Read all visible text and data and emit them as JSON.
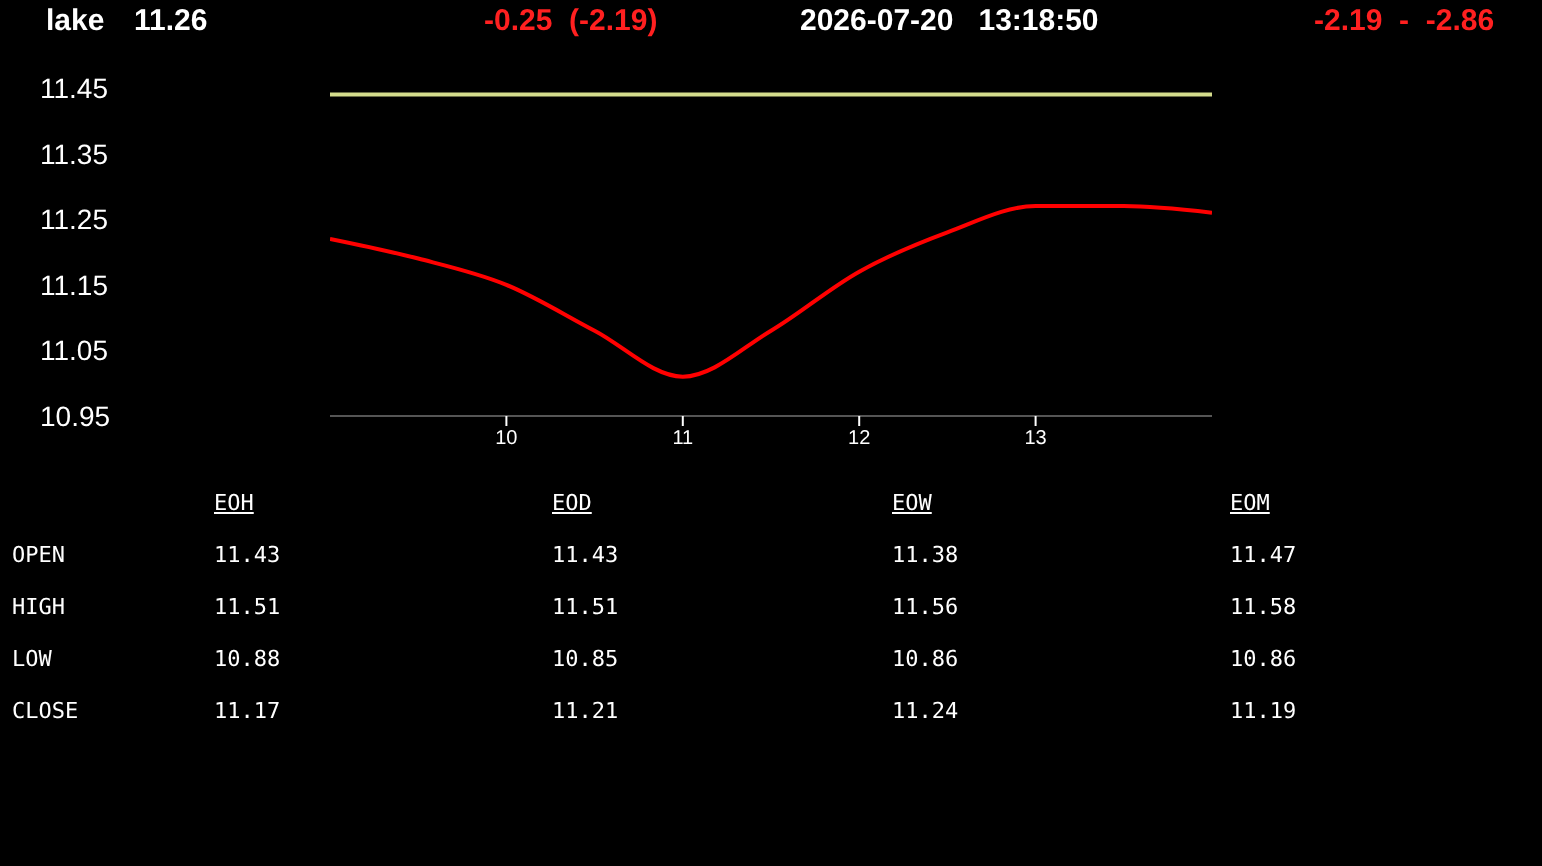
{
  "chart_data": {
    "type": "line",
    "title": "lake",
    "x": [
      9,
      9.5,
      10,
      10.5,
      11,
      11.5,
      12,
      12.5,
      13,
      13.5,
      14
    ],
    "series": [
      {
        "color": "#d4dc8c",
        "values": [
          11.44,
          11.44,
          11.44,
          11.44,
          11.44,
          11.44,
          11.44,
          11.44,
          11.44,
          11.44,
          11.44
        ]
      },
      {
        "color": "#ff0000",
        "values": [
          11.22,
          11.19,
          11.15,
          11.08,
          11.01,
          11.08,
          11.17,
          11.23,
          11.27,
          11.27,
          11.26
        ]
      }
    ],
    "xlim": [
      9,
      14
    ],
    "xticks": [
      10,
      11,
      12,
      13
    ],
    "ylim": [
      10.95,
      11.45
    ],
    "yticks": [
      10.95,
      11.05,
      11.15,
      11.25,
      11.35,
      11.45
    ],
    "grid": false,
    "legend": false,
    "marker": "none",
    "line_style": "solid",
    "annotations": [
      "11.26",
      "-0.25  (-2.19)",
      "2026-07-20   13:18:50",
      "-2.19  -  -2.86",
      "EOH",
      "EOD",
      "EOW",
      "EOM",
      "OPEN",
      "11.43",
      "11.43",
      "11.38",
      "11.47",
      "HIGH",
      "11.51",
      "11.51",
      "11.56",
      "11.58",
      "LOW",
      "10.88",
      "10.85",
      "10.86",
      "10.86",
      "CLOSE",
      "11.17",
      "11.21",
      "11.24",
      "11.19"
    ]
  }
}
